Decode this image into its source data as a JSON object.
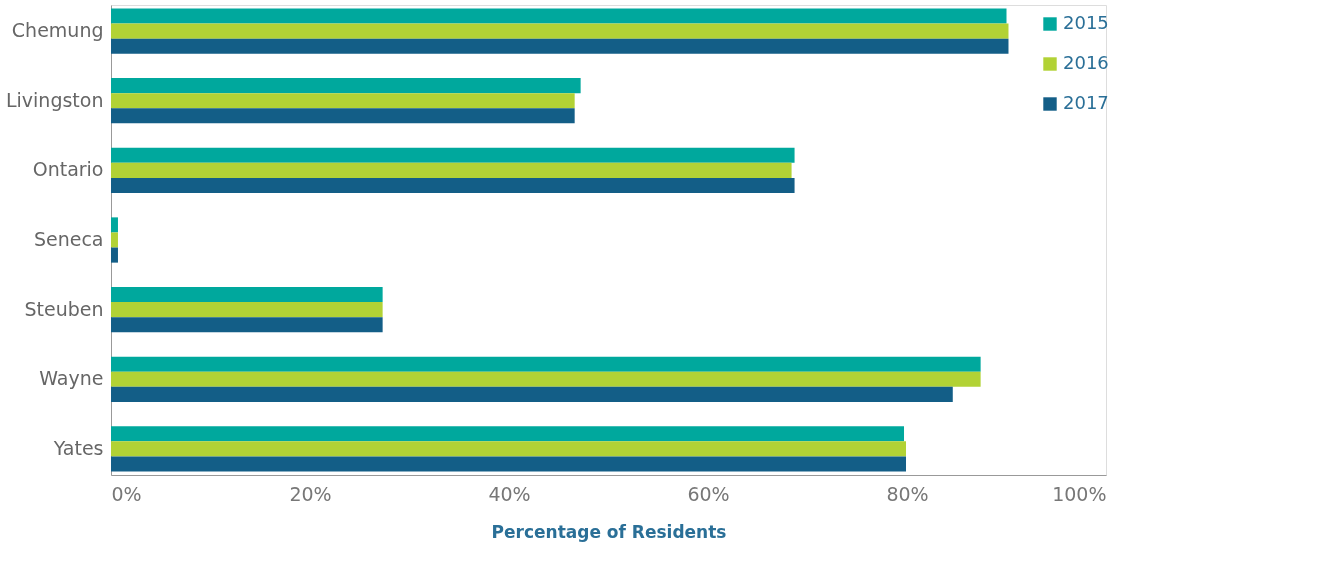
{
  "chart_data": {
    "type": "bar",
    "orientation": "horizontal",
    "xlabel": "Percentage of Residents",
    "categories": [
      "Chemung",
      "Livingston",
      "Ontario",
      "Seneca",
      "Steuben",
      "Wayne",
      "Yates"
    ],
    "series": [
      {
        "name": "2015",
        "color": "#00a89d",
        "values": [
          90.0,
          47.2,
          68.7,
          0.7,
          27.3,
          87.4,
          79.7
        ]
      },
      {
        "name": "2016",
        "color": "#b2d235",
        "values": [
          90.2,
          46.6,
          68.4,
          0.7,
          27.3,
          87.4,
          79.9
        ]
      },
      {
        "name": "2017",
        "color": "#135e87",
        "values": [
          90.2,
          46.6,
          68.7,
          0.7,
          27.3,
          84.6,
          79.9
        ]
      }
    ],
    "xlim": [
      0,
      100
    ],
    "xticks": [
      {
        "value": 0,
        "label": "0%"
      },
      {
        "value": 20,
        "label": "20%"
      },
      {
        "value": 40,
        "label": "40%"
      },
      {
        "value": 60,
        "label": "60%"
      },
      {
        "value": 80,
        "label": "80%"
      },
      {
        "value": 100,
        "label": "100%"
      }
    ],
    "grid": false,
    "legend": "top right"
  }
}
